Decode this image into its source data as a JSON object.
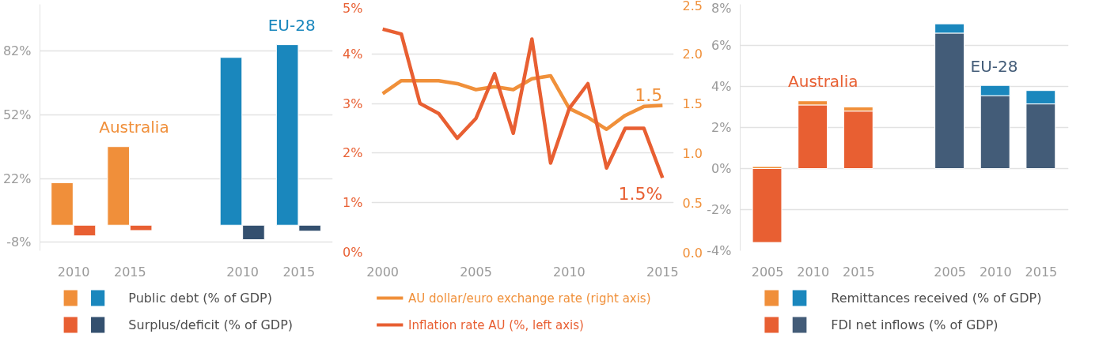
{
  "chart_data": [
    {
      "type": "bar",
      "categories": [
        "2010",
        "2015",
        null,
        "2010",
        "2015"
      ],
      "series": [
        {
          "name": "Public debt (% of GDP)",
          "colors": [
            "#f08f3a",
            "#f08f3a",
            null,
            "#1a87bd",
            "#1a87bd"
          ],
          "values": [
            20,
            37,
            null,
            79,
            85
          ]
        },
        {
          "name": "Surplus/deficit (% of GDP)",
          "colors": [
            "#e85f32",
            "#e85f32",
            null,
            "#34506f",
            "#34506f"
          ],
          "values": [
            -5,
            -2.5,
            null,
            -6.8,
            -2.8
          ]
        }
      ],
      "annotations": [
        "Australia",
        "EU-28"
      ],
      "ylim": [
        -12,
        104
      ],
      "yticks": [
        {
          "value": -8,
          "label": "-8%"
        },
        {
          "value": 22,
          "label": "22%"
        },
        {
          "value": 52,
          "label": "52%"
        },
        {
          "value": 82,
          "label": "82%"
        }
      ],
      "grid": "y",
      "legend": "bottom"
    },
    {
      "type": "line",
      "x": [
        2000,
        2001,
        2002,
        2003,
        2004,
        2005,
        2006,
        2007,
        2008,
        2009,
        2010,
        2011,
        2012,
        2013,
        2014,
        2015
      ],
      "series": [
        {
          "name": "AU dollar/euro exchange rate (right axis)",
          "color": "#f0903a",
          "axis": "y2",
          "values": [
            1.6,
            1.73,
            1.73,
            1.73,
            1.7,
            1.64,
            1.67,
            1.64,
            1.75,
            1.78,
            1.45,
            1.36,
            1.24,
            1.38,
            1.47,
            1.48
          ],
          "value_labels": [
            null,
            null,
            null,
            null,
            null,
            null,
            null,
            null,
            null,
            null,
            null,
            null,
            null,
            null,
            null,
            "1.5"
          ]
        },
        {
          "name": "Inflation rate AU (%, left axis)",
          "color": "#e85f32",
          "values": [
            4.5,
            4.4,
            3.0,
            2.8,
            2.3,
            2.7,
            3.6,
            2.4,
            4.3,
            1.8,
            2.9,
            3.4,
            1.7,
            2.5,
            2.5,
            1.5
          ],
          "value_labels": [
            null,
            null,
            null,
            null,
            null,
            null,
            null,
            null,
            null,
            null,
            null,
            null,
            null,
            null,
            null,
            "1.5%"
          ]
        }
      ],
      "xlim": [
        1999.4,
        2015.6
      ],
      "xticks": [
        2000,
        2005,
        2010,
        2015
      ],
      "ylim": [
        0,
        5
      ],
      "yticks": [
        {
          "value": 0,
          "label": "0%"
        },
        {
          "value": 1,
          "label": "1%"
        },
        {
          "value": 2,
          "label": "2%"
        },
        {
          "value": 3,
          "label": "3%"
        },
        {
          "value": 4,
          "label": "4%"
        },
        {
          "value": 5,
          "label": "5%"
        }
      ],
      "y2lim": [
        0,
        2.5
      ],
      "y2ticks": [
        {
          "value": 0,
          "label": "0.0"
        },
        {
          "value": 0.5,
          "label": "0.5"
        },
        {
          "value": 1,
          "label": "1.0"
        },
        {
          "value": 1.5,
          "label": "1.5"
        },
        {
          "value": 2,
          "label": "2.0"
        },
        {
          "value": 2.5,
          "label": "2.5"
        }
      ],
      "grid": "y",
      "legend": "bottom",
      "marker": "none",
      "line_style": "solid"
    },
    {
      "type": "bar",
      "stacked": true,
      "categories": [
        "2005",
        "2010",
        "2015",
        null,
        "2005",
        "2010",
        "2015"
      ],
      "series": [
        {
          "name": "FDI net inflows (% of GDP)",
          "colors": [
            "#e85f32",
            "#e85f32",
            "#e85f32",
            null,
            "#435c78",
            "#435c78",
            "#435c78"
          ],
          "values": [
            -3.6,
            3.1,
            2.8,
            null,
            6.6,
            3.55,
            3.15
          ]
        },
        {
          "name": "Remittances received (% of GDP)",
          "colors": [
            "#f08f3a",
            "#f08f3a",
            "#f08f3a",
            null,
            "#1a87bd",
            "#1a87bd",
            "#1a87bd"
          ],
          "values": [
            0.1,
            0.2,
            0.2,
            null,
            0.45,
            0.5,
            0.65
          ]
        }
      ],
      "annotations": [
        "Australia",
        "EU-28"
      ],
      "ylim": [
        -4,
        8
      ],
      "yticks": [
        {
          "value": -4,
          "label": "-4%"
        },
        {
          "value": -2,
          "label": "-2%"
        },
        {
          "value": 0,
          "label": "0%"
        },
        {
          "value": 2,
          "label": "2%"
        },
        {
          "value": 4,
          "label": "4%"
        },
        {
          "value": 6,
          "label": "6%"
        },
        {
          "value": 8,
          "label": "8%"
        }
      ],
      "grid": "y",
      "legend": "bottom"
    }
  ]
}
